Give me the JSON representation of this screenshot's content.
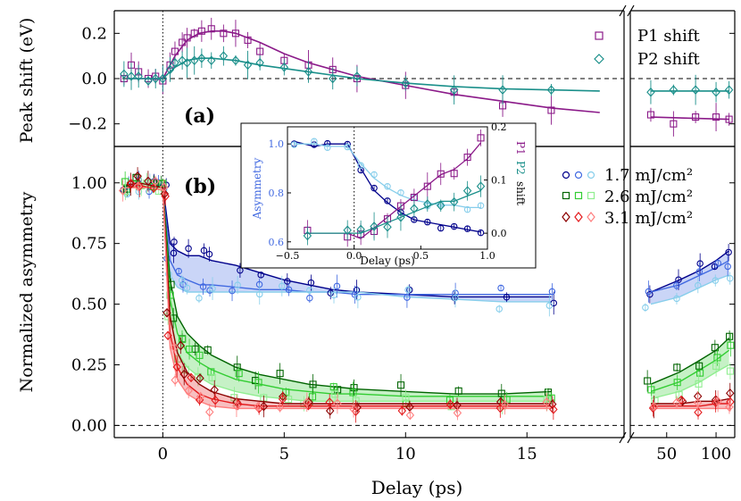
{
  "colors": {
    "p1": "#8b1a89",
    "p2": "#1a8f8a",
    "blue": [
      "#00008b",
      "#4169e1",
      "#87ceeb"
    ],
    "green": [
      "#006400",
      "#32cd32",
      "#90ee90"
    ],
    "red": [
      "#8b0000",
      "#e31a1c",
      "#ff7f7f"
    ]
  },
  "chart_data": [
    {
      "id": "a",
      "type": "scatter",
      "panel_label": "(a)",
      "ylabel": "Peak shift (eV)",
      "ylim": [
        -0.3,
        0.3
      ],
      "yticks": [
        -0.2,
        0.0,
        0.2
      ],
      "ytick_labels": [
        "−0.2",
        "0.0",
        "0.2"
      ],
      "legend_position": "top-right",
      "series": [
        {
          "name": "P1 shift",
          "marker": "square",
          "x": [
            -1.6,
            -1.3,
            -1.0,
            -0.6,
            -0.3,
            0.0,
            0.3,
            0.5,
            0.8,
            1.0,
            1.3,
            1.6,
            2.0,
            2.5,
            3.0,
            3.5,
            4.0,
            5.0,
            6.0,
            7.0,
            8.0,
            10.0,
            12.0,
            14.0,
            16.0,
            40.0,
            55.0,
            75.0,
            100.0,
            120.0
          ],
          "y": [
            0.0,
            0.06,
            0.03,
            0.0,
            0.01,
            -0.01,
            0.06,
            0.12,
            0.16,
            0.18,
            0.2,
            0.21,
            0.22,
            0.2,
            0.2,
            0.17,
            0.12,
            0.08,
            0.06,
            0.04,
            0.0,
            -0.03,
            -0.06,
            -0.12,
            -0.14,
            -0.16,
            -0.2,
            -0.17,
            -0.17,
            -0.18
          ],
          "fit_x": [
            -1.5,
            0,
            0.5,
            1,
            1.5,
            2,
            2.5,
            3,
            4,
            5,
            6,
            8,
            10,
            12,
            14,
            16,
            18,
            40,
            120
          ],
          "fit_y": [
            0,
            0,
            0.1,
            0.17,
            0.2,
            0.21,
            0.21,
            0.2,
            0.16,
            0.11,
            0.07,
            0.01,
            -0.03,
            -0.07,
            -0.1,
            -0.13,
            -0.15,
            -0.17,
            -0.18
          ]
        },
        {
          "name": "P2 shift",
          "marker": "diamond",
          "x": [
            -1.6,
            -1.3,
            -1.0,
            -0.6,
            -0.3,
            0.0,
            0.3,
            0.5,
            0.8,
            1.0,
            1.3,
            1.6,
            2.0,
            2.5,
            3.0,
            3.5,
            4.0,
            5.0,
            6.0,
            7.0,
            8.0,
            10.0,
            12.0,
            14.0,
            16.0,
            40.0,
            55.0,
            75.0,
            100.0,
            120.0
          ],
          "y": [
            0.02,
            0.01,
            0.01,
            -0.01,
            0.0,
            0.0,
            0.04,
            0.07,
            0.08,
            0.07,
            0.08,
            0.09,
            0.08,
            0.1,
            0.08,
            0.06,
            0.07,
            0.05,
            0.03,
            0.0,
            0.01,
            -0.02,
            -0.05,
            -0.05,
            -0.05,
            -0.06,
            -0.05,
            -0.05,
            -0.06,
            -0.05
          ],
          "fit_x": [
            -1.5,
            0,
            0.5,
            1,
            1.5,
            2,
            3,
            4,
            6,
            8,
            10,
            12,
            14,
            16,
            18,
            40,
            120
          ],
          "fit_y": [
            0,
            0,
            0.05,
            0.08,
            0.09,
            0.09,
            0.08,
            0.06,
            0.03,
            0.0,
            -0.02,
            -0.035,
            -0.045,
            -0.05,
            -0.055,
            -0.055,
            -0.055
          ]
        }
      ]
    },
    {
      "id": "b",
      "type": "scatter",
      "panel_label": "(b)",
      "ylabel": "Normalized asymmetry",
      "xlabel": "Delay (ps)",
      "ylim": [
        -0.05,
        1.15
      ],
      "yticks": [
        0.0,
        0.25,
        0.5,
        0.75,
        1.0
      ],
      "ytick_labels": [
        "0.00",
        "0.25",
        "0.50",
        "0.75",
        "1.00"
      ],
      "xticks_linear": [
        0,
        5,
        10,
        15
      ],
      "xtick_labels_linear": [
        "0",
        "5",
        "10",
        "15"
      ],
      "xticks_log": [
        50,
        100
      ],
      "xtick_labels_log": [
        "50",
        "100"
      ],
      "legend_position": "top-right",
      "legend": [
        "1.7 mJ/cm²",
        "2.6 mJ/cm²",
        "3.1 mJ/cm²"
      ],
      "groups": [
        {
          "name": "1.7 mJ/cm²",
          "marker": "circle",
          "x": [
            -1.5,
            -1.0,
            -0.5,
            0.0,
            0.3,
            0.6,
            1.0,
            1.5,
            2.0,
            3.0,
            4.0,
            5.0,
            6.0,
            7.0,
            8.0,
            10.0,
            12.0,
            14.0,
            16.0,
            40.0,
            60.0,
            80.0,
            100.0,
            120.0
          ],
          "upper": [
            0.99,
            1.0,
            0.99,
            0.99,
            0.75,
            0.72,
            0.7,
            0.7,
            0.68,
            0.66,
            0.63,
            0.6,
            0.58,
            0.56,
            0.55,
            0.54,
            0.53,
            0.53,
            0.53,
            0.55,
            0.6,
            0.64,
            0.68,
            0.72
          ],
          "middle": [
            0.98,
            0.99,
            0.98,
            0.98,
            0.68,
            0.62,
            0.6,
            0.58,
            0.58,
            0.57,
            0.56,
            0.56,
            0.55,
            0.55,
            0.54,
            0.54,
            0.54,
            0.54,
            0.54,
            0.55,
            0.58,
            0.62,
            0.65,
            0.68
          ],
          "lower": [
            0.98,
            0.98,
            0.98,
            0.97,
            0.62,
            0.57,
            0.55,
            0.55,
            0.55,
            0.55,
            0.55,
            0.55,
            0.55,
            0.55,
            0.55,
            0.53,
            0.52,
            0.51,
            0.51,
            0.5,
            0.53,
            0.57,
            0.6,
            0.62
          ]
        },
        {
          "name": "2.6 mJ/cm²",
          "marker": "square",
          "x": [
            -1.5,
            -1.0,
            -0.5,
            0.0,
            0.3,
            0.6,
            1.0,
            1.5,
            2.0,
            3.0,
            4.0,
            5.0,
            6.0,
            7.0,
            8.0,
            10.0,
            12.0,
            14.0,
            16.0,
            40.0,
            60.0,
            80.0,
            100.0,
            120.0
          ],
          "upper": [
            0.99,
            1.0,
            0.99,
            0.98,
            0.6,
            0.45,
            0.38,
            0.33,
            0.29,
            0.24,
            0.21,
            0.19,
            0.17,
            0.16,
            0.15,
            0.14,
            0.13,
            0.13,
            0.14,
            0.17,
            0.22,
            0.27,
            0.31,
            0.36
          ],
          "middle": [
            0.98,
            0.99,
            0.98,
            0.97,
            0.52,
            0.38,
            0.3,
            0.26,
            0.23,
            0.19,
            0.17,
            0.15,
            0.14,
            0.13,
            0.13,
            0.12,
            0.12,
            0.12,
            0.12,
            0.14,
            0.18,
            0.23,
            0.27,
            0.31
          ],
          "lower": [
            0.98,
            0.98,
            0.98,
            0.97,
            0.45,
            0.3,
            0.24,
            0.2,
            0.17,
            0.14,
            0.12,
            0.11,
            0.1,
            0.1,
            0.1,
            0.1,
            0.1,
            0.1,
            0.1,
            0.11,
            0.14,
            0.18,
            0.22,
            0.25
          ]
        },
        {
          "name": "3.1 mJ/cm²",
          "marker": "diamond",
          "x": [
            -1.5,
            -1.0,
            -0.5,
            0.0,
            0.3,
            0.6,
            1.0,
            1.5,
            2.0,
            3.0,
            4.0,
            5.0,
            6.0,
            7.0,
            8.0,
            10.0,
            12.0,
            14.0,
            16.0,
            40.0,
            60.0,
            80.0,
            100.0,
            120.0
          ],
          "upper": [
            0.99,
            1.0,
            0.99,
            0.98,
            0.45,
            0.3,
            0.22,
            0.17,
            0.14,
            0.11,
            0.1,
            0.09,
            0.09,
            0.09,
            0.09,
            0.09,
            0.09,
            0.09,
            0.09,
            0.09,
            0.09,
            0.1,
            0.1,
            0.11
          ],
          "middle": [
            0.98,
            0.99,
            0.98,
            0.97,
            0.38,
            0.24,
            0.17,
            0.13,
            0.11,
            0.09,
            0.08,
            0.08,
            0.08,
            0.08,
            0.08,
            0.08,
            0.08,
            0.08,
            0.08,
            0.08,
            0.08,
            0.08,
            0.09,
            0.09
          ],
          "lower": [
            0.98,
            0.98,
            0.98,
            0.97,
            0.32,
            0.19,
            0.13,
            0.1,
            0.08,
            0.07,
            0.07,
            0.07,
            0.07,
            0.07,
            0.07,
            0.07,
            0.07,
            0.07,
            0.07,
            0.07,
            0.07,
            0.07,
            0.07,
            0.07
          ]
        }
      ]
    },
    {
      "id": "inset",
      "type": "line",
      "xlabel": "Delay (ps)",
      "ylabel_left": "Asymmetry",
      "ylabel_right_parts": [
        "P1",
        "P2",
        "shift"
      ],
      "xlim": [
        -0.5,
        1.0
      ],
      "ylim_left": [
        0.57,
        1.07
      ],
      "ylim_right": [
        -0.03,
        0.2
      ],
      "xticks": [
        -0.5,
        0.0,
        0.5,
        1.0
      ],
      "xtick_labels": [
        "−0.5",
        "0.0",
        "0.5",
        "1.0"
      ],
      "yticks_left": [
        0.6,
        0.8,
        1.0
      ],
      "ytick_labels_left": [
        "0.6",
        "0.8",
        "1.0"
      ],
      "yticks_right": [
        0.0,
        0.1,
        0.2
      ],
      "ytick_labels_right": [
        "0.0",
        "0.1",
        "0.2"
      ],
      "series": [
        {
          "name": "Asymmetry",
          "axis": "left",
          "x": [
            -0.45,
            -0.3,
            -0.2,
            -0.05,
            0.05,
            0.15,
            0.25,
            0.35,
            0.45,
            0.55,
            0.65,
            0.75,
            0.85,
            0.95
          ],
          "y": [
            1.01,
            0.99,
            1.0,
            1.0,
            0.9,
            0.81,
            0.76,
            0.72,
            0.69,
            0.68,
            0.67,
            0.66,
            0.65,
            0.64
          ]
        },
        {
          "name": "Asymmetry (light)",
          "axis": "left",
          "x": [
            -0.45,
            -0.3,
            -0.2,
            -0.05,
            0.05,
            0.15,
            0.25,
            0.35,
            0.45,
            0.55,
            0.65,
            0.75,
            0.85,
            0.95
          ],
          "y": [
            1.0,
            1.0,
            0.99,
            0.99,
            0.92,
            0.86,
            0.82,
            0.79,
            0.77,
            0.76,
            0.75,
            0.75,
            0.74,
            0.74
          ]
        },
        {
          "name": "P1 shift",
          "axis": "right",
          "x": [
            -0.35,
            -0.05,
            0.05,
            0.15,
            0.25,
            0.35,
            0.45,
            0.55,
            0.65,
            0.75,
            0.85,
            0.95
          ],
          "y": [
            0.0,
            0.0,
            -0.01,
            0.01,
            0.03,
            0.05,
            0.07,
            0.09,
            0.11,
            0.12,
            0.14,
            0.17
          ]
        },
        {
          "name": "P2 shift",
          "axis": "right",
          "x": [
            -0.35,
            -0.05,
            0.05,
            0.15,
            0.25,
            0.35,
            0.45,
            0.55,
            0.65,
            0.75,
            0.85,
            0.95
          ],
          "y": [
            0.0,
            0.0,
            0.0,
            0.01,
            0.02,
            0.03,
            0.04,
            0.05,
            0.06,
            0.06,
            0.07,
            0.08
          ]
        }
      ]
    }
  ]
}
